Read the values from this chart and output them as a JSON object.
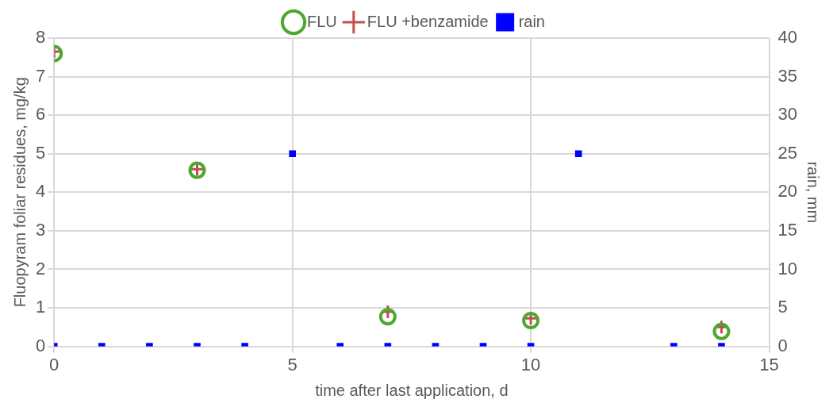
{
  "chart_data": {
    "type": "scatter",
    "xlabel": "time after last application, d",
    "ylabel": "Fluopyram foliar residues, mg/kg",
    "y2label": "rain, mm",
    "xlim": [
      0,
      15
    ],
    "xticks": [
      0,
      5,
      10,
      15
    ],
    "ylim": [
      0,
      8
    ],
    "yticks": [
      0,
      1,
      2,
      3,
      4,
      5,
      6,
      7,
      8
    ],
    "y2lim": [
      0,
      40
    ],
    "y2ticks": [
      0,
      5,
      10,
      15,
      20,
      25,
      30,
      35,
      40
    ],
    "grid": true,
    "legend": "top",
    "series": [
      {
        "name": "FLU",
        "color": "#4ea72e",
        "marker": "circle",
        "x": [
          0,
          3,
          7,
          10,
          14
        ],
        "values": [
          7.6,
          4.57,
          0.77,
          0.67,
          0.39
        ]
      },
      {
        "name": "FLU +benzamide",
        "color": "#c0504d",
        "marker": "cross",
        "x": [
          0,
          3,
          7,
          10,
          14
        ],
        "values": [
          7.65,
          4.6,
          0.9,
          0.73,
          0.5
        ]
      },
      {
        "name": "rain",
        "color": "#0000ff",
        "marker": "square",
        "axis": "y2",
        "x": [
          0,
          1,
          2,
          3,
          4,
          5,
          6,
          7,
          8,
          9,
          10,
          11,
          13,
          14
        ],
        "values": [
          0,
          0,
          0,
          0,
          0,
          25,
          0,
          0,
          0,
          0,
          0,
          25,
          0,
          0
        ]
      }
    ]
  }
}
